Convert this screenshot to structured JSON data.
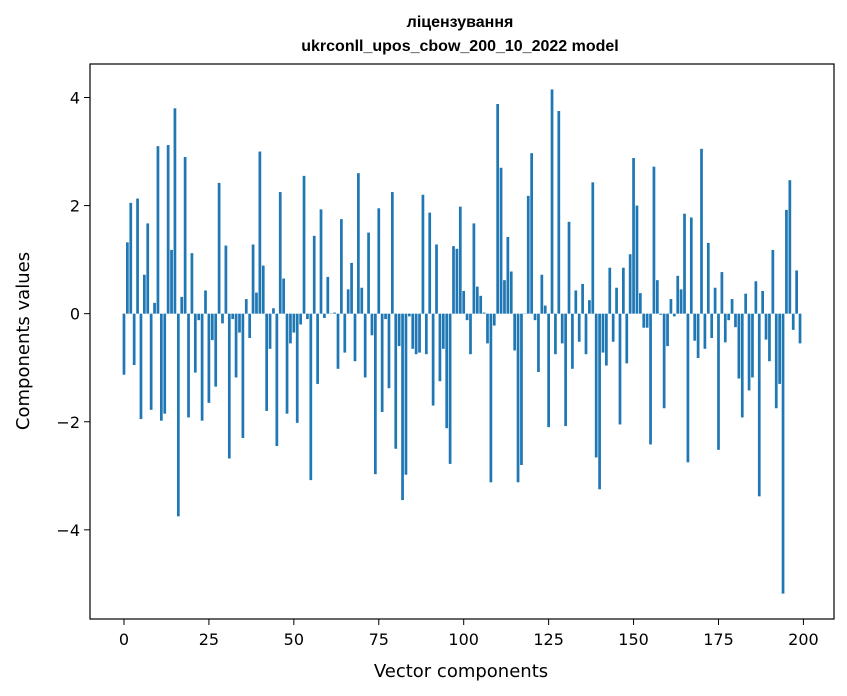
{
  "chart_data": {
    "type": "bar",
    "title_line1": "ліцензування",
    "title_line2": "ukrconll_upos_cbow_200_10_2022 model",
    "xlabel": "Vector components",
    "ylabel": "Components values",
    "xlim": [
      -10,
      209
    ],
    "ylim": [
      -5.65,
      4.62
    ],
    "xticks": [
      0,
      25,
      50,
      75,
      100,
      125,
      150,
      175,
      200
    ],
    "yticks": [
      -4,
      -2,
      0,
      2,
      4
    ],
    "ytick_labels": [
      "−4",
      "−2",
      "0",
      "2",
      "4"
    ],
    "bar_color": "#1f77b4",
    "bar_width": 0.8,
    "values": [
      -1.13,
      1.32,
      2.05,
      -0.95,
      2.13,
      -1.95,
      0.72,
      1.67,
      -1.78,
      0.2,
      3.1,
      -1.98,
      -1.85,
      3.12,
      1.18,
      3.8,
      -3.75,
      0.31,
      2.9,
      -1.92,
      1.12,
      -1.09,
      -0.12,
      -1.98,
      0.43,
      -1.65,
      -0.49,
      -1.35,
      2.42,
      -0.18,
      1.26,
      -2.68,
      -0.1,
      -1.18,
      -0.35,
      -2.3,
      0.27,
      -0.45,
      1.28,
      0.39,
      3.0,
      0.89,
      -1.8,
      -0.65,
      0.1,
      -2.45,
      2.25,
      0.65,
      -1.85,
      -0.55,
      -0.35,
      -2.02,
      -0.2,
      2.55,
      -0.1,
      -3.08,
      1.44,
      -1.3,
      1.93,
      -0.08,
      0.68,
      0.0,
      0.02,
      -1.02,
      1.75,
      -0.72,
      0.45,
      0.94,
      -0.88,
      2.6,
      0.48,
      -1.18,
      1.5,
      -0.4,
      -2.97,
      1.95,
      -1.82,
      -0.1,
      -1.38,
      2.25,
      -2.5,
      -0.6,
      -3.45,
      -2.98,
      -0.05,
      -0.65,
      -0.75,
      -0.72,
      2.2,
      -0.75,
      1.87,
      -1.7,
      1.28,
      -1.25,
      -0.65,
      -2.12,
      -2.78,
      1.25,
      1.2,
      1.98,
      0.42,
      -0.12,
      -0.75,
      1.67,
      0.5,
      0.33,
      0.02,
      -0.55,
      -3.12,
      -0.22,
      3.88,
      2.7,
      0.62,
      1.42,
      0.78,
      -0.68,
      -3.12,
      -2.8,
      0.0,
      2.18,
      2.97,
      -0.12,
      -1.08,
      0.72,
      0.15,
      -2.1,
      4.15,
      -0.75,
      3.75,
      -0.55,
      -2.08,
      1.7,
      -1.02,
      0.43,
      -0.52,
      0.55,
      -0.75,
      0.25,
      2.43,
      -2.66,
      -3.25,
      -0.72,
      -0.96,
      0.85,
      -0.52,
      0.48,
      -2.05,
      0.85,
      -0.92,
      1.1,
      2.88,
      2.0,
      0.38,
      -0.26,
      -0.26,
      -2.42,
      2.72,
      0.62,
      -0.02,
      -1.75,
      -0.6,
      0.27,
      -0.05,
      0.7,
      0.45,
      1.85,
      -2.75,
      1.78,
      -0.5,
      -0.82,
      3.05,
      -0.65,
      1.31,
      -0.45,
      0.48,
      -2.52,
      0.77,
      -0.53,
      -0.12,
      0.27,
      -0.25,
      -1.2,
      -1.92,
      0.37,
      -1.42,
      -1.18,
      0.6,
      -3.38,
      0.42,
      -0.48,
      -0.88,
      1.18,
      -1.75,
      -1.3,
      -5.18,
      1.92,
      2.47,
      -0.3,
      0.8,
      -0.55
    ]
  }
}
